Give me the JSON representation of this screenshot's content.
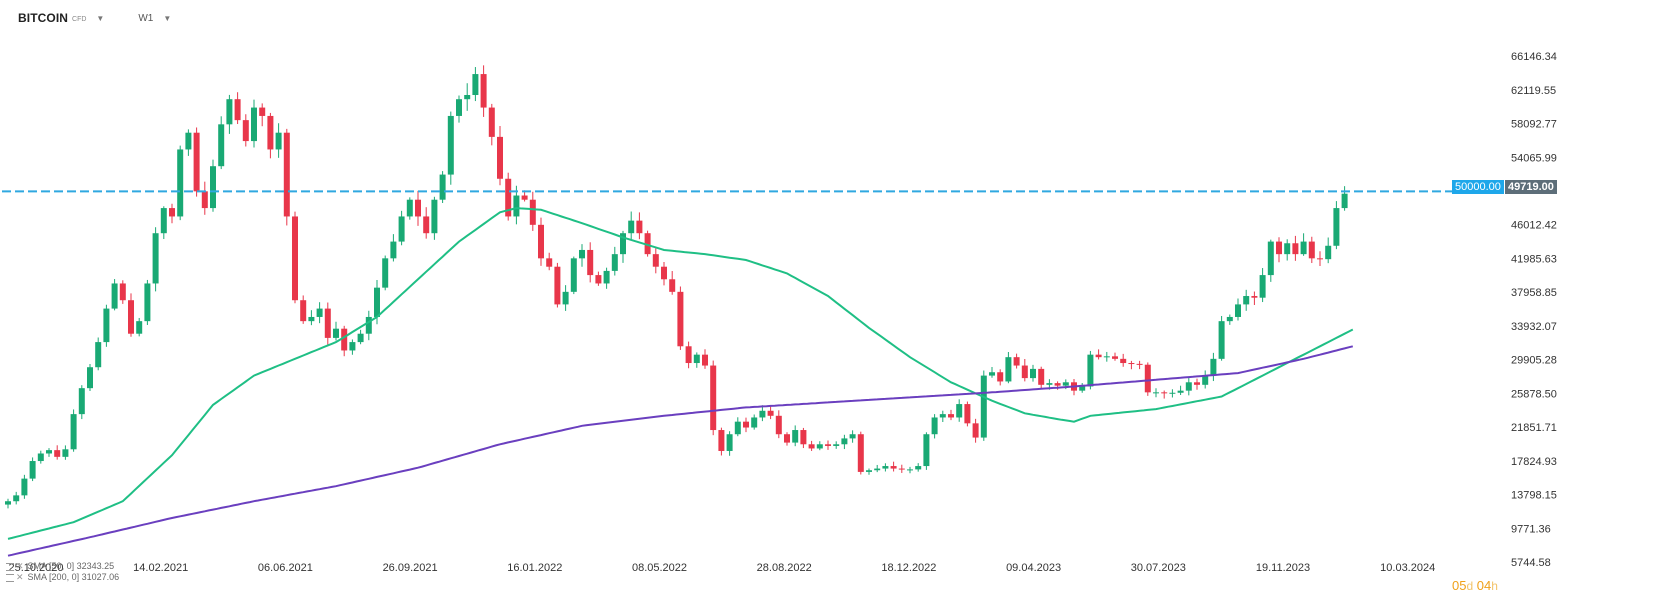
{
  "toolbar": {
    "symbol": "BITCOIN",
    "symbol_type": "CFD",
    "timeframe": "W1"
  },
  "level_tag": "50000.00",
  "price_tag": "49719.00",
  "countdown": {
    "days": "05",
    "days_unit": "d",
    "hours": "04",
    "hours_unit": "h"
  },
  "indicators": [
    {
      "label": "SMA [50, 0]",
      "value": "32343.25",
      "color": "#1fbf85"
    },
    {
      "label": "SMA [200, 0]",
      "value": "31027.06",
      "color": "#6a3fbf"
    }
  ],
  "colors": {
    "up": "#19a974",
    "down": "#e8364a",
    "level_line": "#2fa8e0",
    "background": "#ffffff"
  },
  "chart_data": {
    "type": "candlestick",
    "title": "",
    "xlabel": "",
    "ylabel": "",
    "ylim": [
      5744.58,
      69500
    ],
    "grid": false,
    "y_ticks": [
      "66146.34",
      "62119.55",
      "58092.77",
      "54065.99",
      "46012.42",
      "41985.63",
      "37958.85",
      "33932.07",
      "29905.28",
      "25878.50",
      "21851.71",
      "17824.93",
      "13798.15",
      "9771.36",
      "5744.58"
    ],
    "x_ticks": [
      "25.10.2020",
      "14.02.2021",
      "06.06.2021",
      "26.09.2021",
      "16.01.2022",
      "08.05.2022",
      "28.08.2022",
      "18.12.2022",
      "09.04.2023",
      "30.07.2023",
      "19.11.2023",
      "10.03.2024"
    ],
    "horizontal_level": 50000,
    "last_price": 49719,
    "anchors": [
      [
        0,
        13000
      ],
      [
        1,
        13700
      ],
      [
        2,
        15700
      ],
      [
        3,
        17800
      ],
      [
        4,
        18700
      ],
      [
        5,
        19100
      ],
      [
        6,
        18300
      ],
      [
        7,
        19200
      ],
      [
        8,
        23400
      ],
      [
        9,
        26500
      ],
      [
        10,
        29000
      ],
      [
        11,
        32000
      ],
      [
        12,
        36000
      ],
      [
        13,
        39000
      ],
      [
        14,
        37000
      ],
      [
        15,
        33000
      ],
      [
        16,
        34500
      ],
      [
        17,
        39000
      ],
      [
        18,
        45000
      ],
      [
        19,
        48000
      ],
      [
        20,
        47000
      ],
      [
        21,
        55000
      ],
      [
        22,
        57000
      ],
      [
        23,
        50000
      ],
      [
        24,
        48000
      ],
      [
        25,
        53000
      ],
      [
        26,
        58000
      ],
      [
        27,
        61000
      ],
      [
        28,
        58500
      ],
      [
        29,
        56000
      ],
      [
        30,
        60000
      ],
      [
        31,
        59000
      ],
      [
        32,
        55000
      ],
      [
        33,
        57000
      ],
      [
        34,
        47000
      ],
      [
        35,
        37000
      ],
      [
        36,
        34500
      ],
      [
        37,
        35000
      ],
      [
        38,
        36000
      ],
      [
        39,
        32500
      ],
      [
        40,
        33600
      ],
      [
        41,
        31000
      ],
      [
        42,
        32000
      ],
      [
        43,
        33000
      ],
      [
        44,
        35000
      ],
      [
        45,
        38500
      ],
      [
        46,
        42000
      ],
      [
        47,
        44000
      ],
      [
        48,
        47000
      ],
      [
        49,
        49000
      ],
      [
        50,
        47000
      ],
      [
        51,
        45000
      ],
      [
        52,
        49000
      ],
      [
        53,
        52000
      ],
      [
        54,
        59000
      ],
      [
        55,
        61000
      ],
      [
        56,
        61500
      ],
      [
        57,
        64000
      ],
      [
        58,
        60000
      ],
      [
        59,
        56500
      ],
      [
        60,
        51500
      ],
      [
        61,
        47000
      ],
      [
        62,
        49500
      ],
      [
        63,
        49000
      ],
      [
        64,
        46000
      ],
      [
        65,
        42000
      ],
      [
        66,
        41000
      ],
      [
        67,
        36500
      ],
      [
        68,
        38000
      ],
      [
        69,
        42000
      ],
      [
        70,
        43000
      ],
      [
        71,
        40000
      ],
      [
        72,
        39000
      ],
      [
        73,
        40500
      ],
      [
        74,
        42500
      ],
      [
        75,
        45000
      ],
      [
        76,
        46500
      ],
      [
        77,
        45000
      ],
      [
        78,
        42500
      ],
      [
        79,
        41000
      ],
      [
        80,
        39500
      ],
      [
        81,
        38000
      ],
      [
        82,
        31500
      ],
      [
        83,
        29500
      ],
      [
        84,
        30500
      ],
      [
        85,
        29200
      ],
      [
        86,
        21500
      ],
      [
        87,
        19000
      ],
      [
        88,
        21000
      ],
      [
        89,
        22500
      ],
      [
        90,
        21800
      ],
      [
        91,
        23000
      ],
      [
        92,
        23800
      ],
      [
        93,
        23200
      ],
      [
        94,
        21000
      ],
      [
        95,
        20000
      ],
      [
        96,
        21500
      ],
      [
        97,
        19800
      ],
      [
        98,
        19300
      ],
      [
        99,
        19800
      ],
      [
        100,
        19600
      ],
      [
        101,
        19800
      ],
      [
        102,
        20500
      ],
      [
        103,
        21000
      ],
      [
        104,
        16500
      ],
      [
        105,
        16700
      ],
      [
        106,
        16900
      ],
      [
        107,
        17200
      ],
      [
        108,
        16900
      ],
      [
        109,
        16800
      ],
      [
        110,
        16800
      ],
      [
        111,
        17200
      ],
      [
        112,
        21000
      ],
      [
        113,
        23000
      ],
      [
        114,
        23400
      ],
      [
        115,
        23000
      ],
      [
        116,
        24600
      ],
      [
        117,
        22300
      ],
      [
        118,
        20600
      ],
      [
        119,
        28000
      ],
      [
        120,
        28400
      ],
      [
        121,
        27300
      ],
      [
        122,
        30200
      ],
      [
        123,
        29200
      ],
      [
        124,
        27700
      ],
      [
        125,
        28800
      ],
      [
        126,
        26900
      ],
      [
        127,
        27100
      ],
      [
        128,
        26800
      ],
      [
        129,
        27200
      ],
      [
        130,
        26200
      ],
      [
        131,
        26700
      ],
      [
        132,
        30500
      ],
      [
        133,
        30200
      ],
      [
        134,
        30300
      ],
      [
        135,
        30000
      ],
      [
        136,
        29500
      ],
      [
        137,
        29400
      ],
      [
        138,
        29300
      ],
      [
        139,
        26000
      ],
      [
        140,
        26000
      ],
      [
        141,
        25900
      ],
      [
        142,
        25950
      ],
      [
        143,
        26200
      ],
      [
        144,
        27200
      ],
      [
        145,
        26900
      ],
      [
        146,
        28000
      ],
      [
        147,
        30000
      ],
      [
        148,
        34500
      ],
      [
        149,
        35000
      ],
      [
        150,
        36500
      ],
      [
        151,
        37500
      ],
      [
        152,
        37300
      ],
      [
        153,
        40000
      ],
      [
        154,
        44000
      ],
      [
        155,
        42500
      ],
      [
        156,
        43800
      ],
      [
        157,
        42500
      ],
      [
        158,
        44000
      ],
      [
        159,
        42000
      ],
      [
        160,
        41900
      ],
      [
        161,
        43500
      ],
      [
        162,
        48000
      ],
      [
        163,
        49719
      ]
    ],
    "sma50_anchors": [
      [
        0,
        8500
      ],
      [
        8,
        10500
      ],
      [
        14,
        13000
      ],
      [
        20,
        18500
      ],
      [
        25,
        24500
      ],
      [
        30,
        28000
      ],
      [
        35,
        30000
      ],
      [
        40,
        32000
      ],
      [
        45,
        35000
      ],
      [
        50,
        39500
      ],
      [
        55,
        44000
      ],
      [
        60,
        47500
      ],
      [
        62,
        48000
      ],
      [
        65,
        47800
      ],
      [
        70,
        46200
      ],
      [
        75,
        44500
      ],
      [
        80,
        43000
      ],
      [
        85,
        42500
      ],
      [
        90,
        41800
      ],
      [
        95,
        40200
      ],
      [
        100,
        37500
      ],
      [
        105,
        33700
      ],
      [
        110,
        30200
      ],
      [
        115,
        27200
      ],
      [
        120,
        25000
      ],
      [
        124,
        23500
      ],
      [
        128,
        22800
      ],
      [
        130,
        22500
      ],
      [
        132,
        23200
      ],
      [
        140,
        24000
      ],
      [
        148,
        25500
      ],
      [
        152,
        27500
      ],
      [
        158,
        30500
      ],
      [
        164,
        33500
      ]
    ],
    "sma200_anchors": [
      [
        0,
        6500
      ],
      [
        10,
        8700
      ],
      [
        20,
        11000
      ],
      [
        30,
        13000
      ],
      [
        40,
        14800
      ],
      [
        50,
        17000
      ],
      [
        60,
        19800
      ],
      [
        70,
        22000
      ],
      [
        80,
        23200
      ],
      [
        90,
        24200
      ],
      [
        100,
        24800
      ],
      [
        110,
        25400
      ],
      [
        120,
        26000
      ],
      [
        130,
        26700
      ],
      [
        140,
        27500
      ],
      [
        150,
        28300
      ],
      [
        158,
        30000
      ],
      [
        164,
        31500
      ]
    ]
  }
}
